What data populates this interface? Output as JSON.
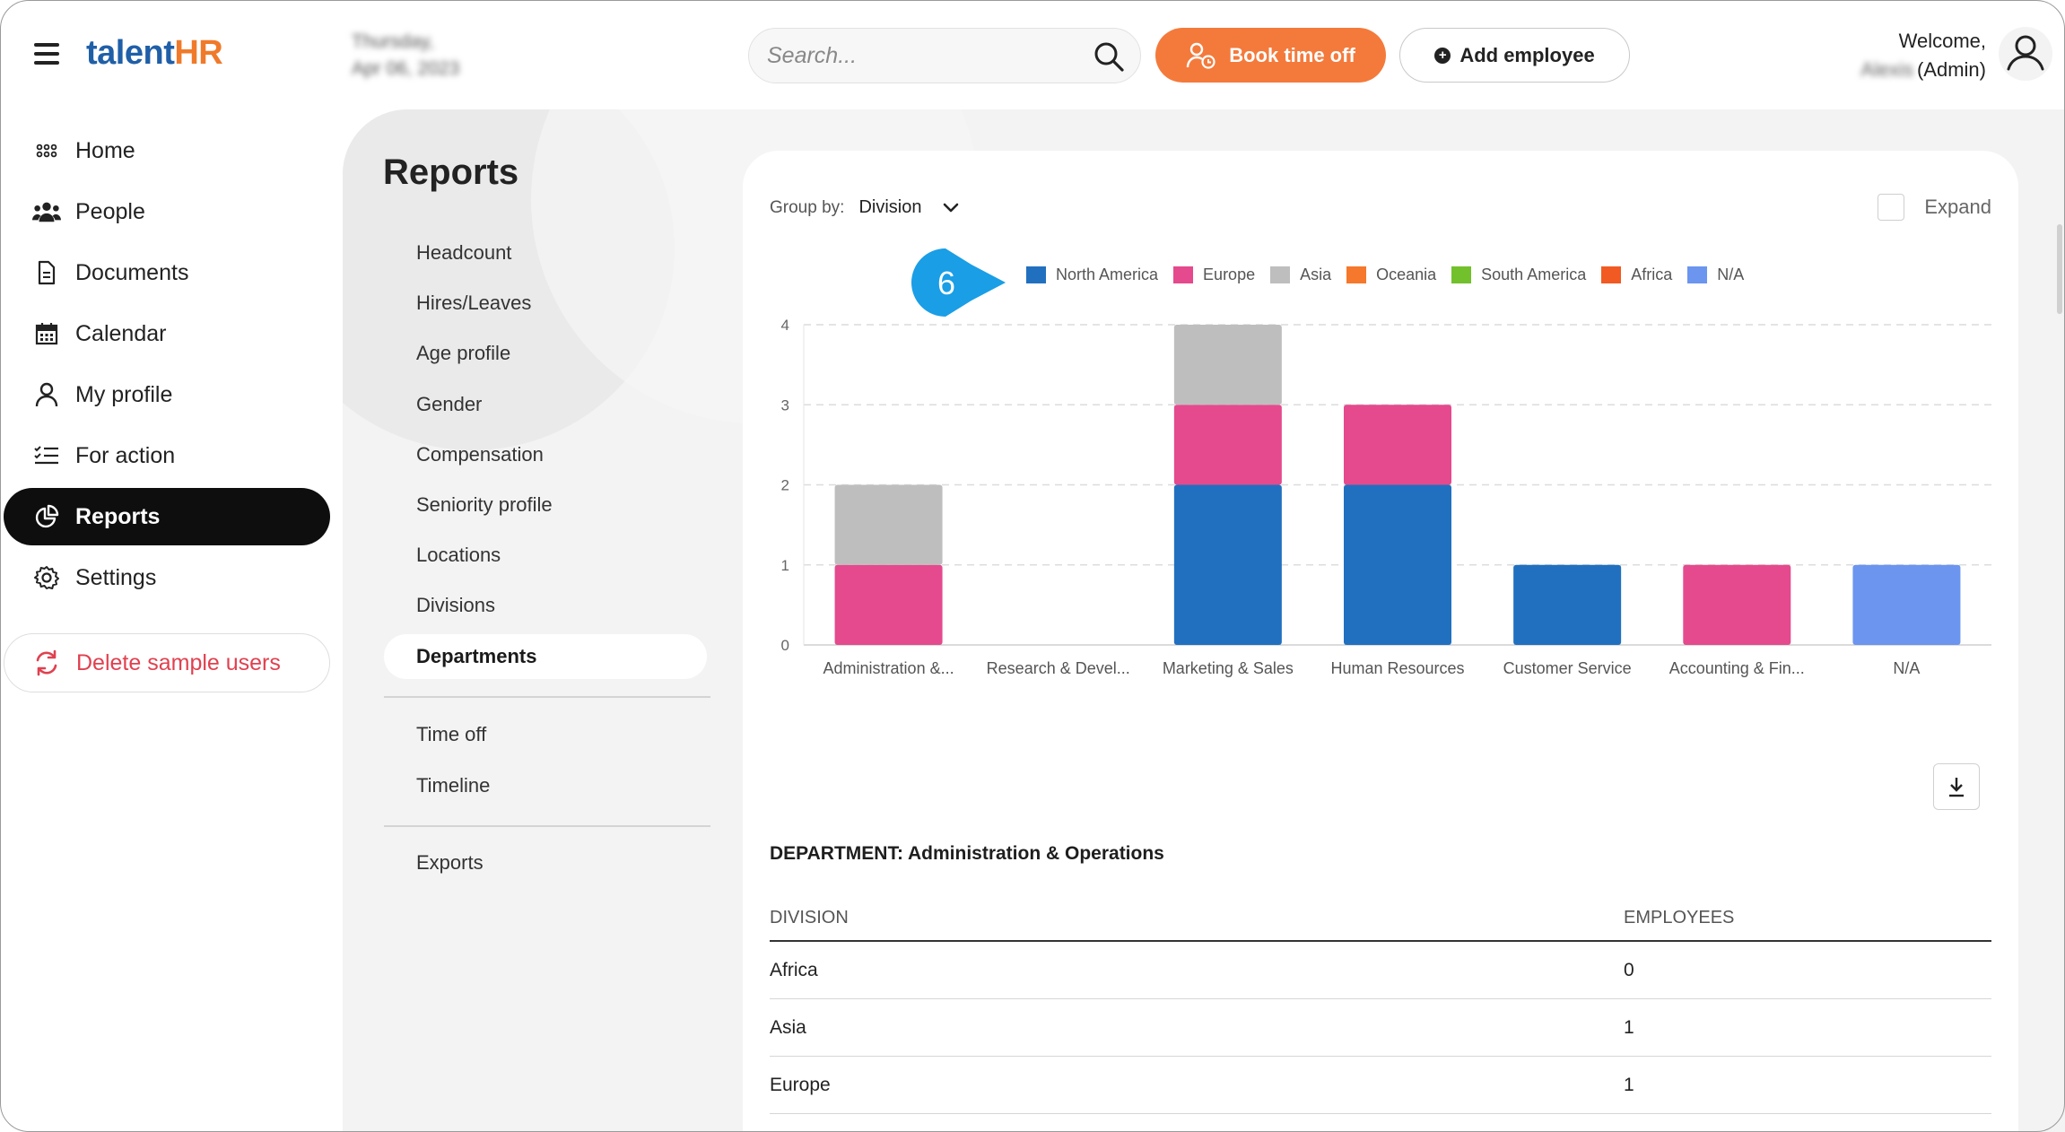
{
  "app": {
    "logo_part1": "talent",
    "logo_part2": "HR"
  },
  "header": {
    "date_line1": "Thursday,",
    "date_line2": "Apr 06, 2023",
    "search_placeholder": "Search...",
    "book_time_off": "Book time off",
    "add_employee": "Add employee",
    "welcome": "Welcome,",
    "user_name": "Alexis",
    "user_role": "(Admin)"
  },
  "nav": {
    "items": [
      {
        "label": "Home",
        "icon": "home-grid-icon"
      },
      {
        "label": "People",
        "icon": "people-icon"
      },
      {
        "label": "Documents",
        "icon": "document-icon"
      },
      {
        "label": "Calendar",
        "icon": "calendar-icon"
      },
      {
        "label": "My profile",
        "icon": "user-icon"
      },
      {
        "label": "For action",
        "icon": "checklist-icon"
      },
      {
        "label": "Reports",
        "icon": "pie-chart-icon"
      },
      {
        "label": "Settings",
        "icon": "gear-icon"
      }
    ],
    "active": "Reports",
    "delete_label": "Delete sample users"
  },
  "reports": {
    "title": "Reports",
    "group1": [
      "Headcount",
      "Hires/Leaves",
      "Age profile",
      "Gender",
      "Compensation",
      "Seniority profile",
      "Locations",
      "Divisions",
      "Departments"
    ],
    "group2": [
      "Time off",
      "Timeline"
    ],
    "group3": [
      "Exports"
    ],
    "active": "Departments"
  },
  "controls": {
    "group_by_label": "Group by:",
    "group_by_value": "Division",
    "expand_label": "Expand",
    "callout_number": "6"
  },
  "colors": {
    "north_america": "#2170c0",
    "europe": "#e44a8d",
    "asia": "#bebebe",
    "oceania": "#f5782c",
    "south_america": "#72c02c",
    "africa": "#f15a22",
    "na": "#6b95ef",
    "accent_orange": "#f47a3b",
    "callout_blue": "#1a9ee6",
    "delete_red": "#e0414f"
  },
  "chart_data": {
    "type": "bar",
    "stacked": true,
    "categories": [
      "Administration &...",
      "Research & Devel...",
      "Marketing & Sales",
      "Human Resources",
      "Customer Service",
      "Accounting & Fin...",
      "N/A"
    ],
    "series": [
      {
        "name": "North America",
        "color": "#2170c0",
        "values": [
          0,
          0,
          2,
          2,
          1,
          0,
          0
        ]
      },
      {
        "name": "Europe",
        "color": "#e44a8d",
        "values": [
          1,
          0,
          1,
          1,
          0,
          1,
          0
        ]
      },
      {
        "name": "Asia",
        "color": "#bebebe",
        "values": [
          1,
          0,
          1,
          0,
          0,
          0,
          0
        ]
      },
      {
        "name": "Oceania",
        "color": "#f5782c",
        "values": [
          0,
          0,
          0,
          0,
          0,
          0,
          0
        ]
      },
      {
        "name": "South America",
        "color": "#72c02c",
        "values": [
          0,
          0,
          0,
          0,
          0,
          0,
          0
        ]
      },
      {
        "name": "Africa",
        "color": "#f15a22",
        "values": [
          0,
          0,
          0,
          0,
          0,
          0,
          0
        ]
      },
      {
        "name": "N/A",
        "color": "#6b95ef",
        "values": [
          0,
          0,
          0,
          0,
          0,
          0,
          1
        ]
      }
    ],
    "yticks": [
      0,
      1,
      2,
      3,
      4
    ],
    "ylim": [
      0,
      4
    ],
    "grid": true,
    "legend_position": "top",
    "title": "",
    "xlabel": "",
    "ylabel": ""
  },
  "table": {
    "department_title": "DEPARTMENT: Administration & Operations",
    "headers": [
      "DIVISION",
      "EMPLOYEES"
    ],
    "rows": [
      [
        "Africa",
        "0"
      ],
      [
        "Asia",
        "1"
      ],
      [
        "Europe",
        "1"
      ]
    ]
  }
}
